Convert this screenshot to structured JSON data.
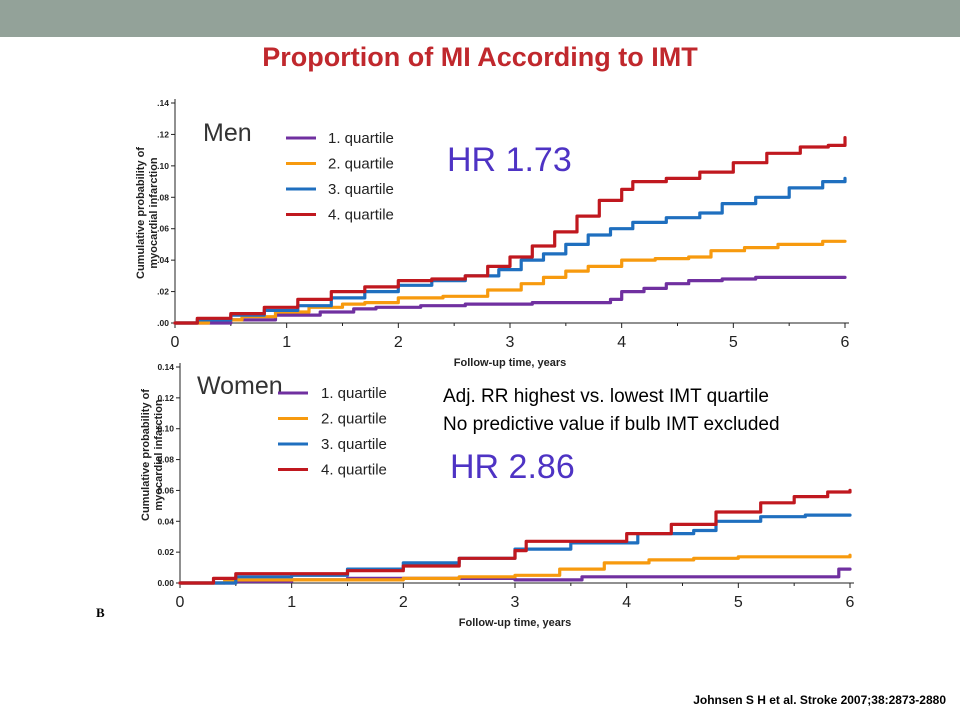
{
  "slide": {
    "title": "Proportion of MI According to IMT",
    "citation": "Johnsen S H et al. Stroke 2007;38:2873-2880",
    "panel_marker": "B"
  },
  "annotations": {
    "men_hr": "HR 1.73",
    "adj_line1": "Adj. RR highest vs. lowest IMT quartile",
    "adj_line2": "No predictive value if bulb IMT excluded",
    "women_hr": "HR 2.86"
  },
  "chart_data": [
    {
      "type": "line",
      "panel_label": "Men",
      "xlabel": "Follow-up time, years",
      "ylabel": "Cumulative probability of myocardial infarction",
      "xlim": [
        0,
        6
      ],
      "ylim": [
        0,
        0.14
      ],
      "x_ticks": [
        "0",
        "1",
        "2",
        "3",
        "4",
        "5",
        "6"
      ],
      "y_ticks": [
        ".00",
        ".02",
        ".04",
        ".06",
        ".08",
        ".10",
        ".12",
        ".14"
      ],
      "legend_position": "top-left",
      "series": [
        {
          "name": "1. quartile",
          "color": "#7030a0",
          "points": [
            [
              0,
              0
            ],
            [
              0.3,
              0
            ],
            [
              0.5,
              0.002
            ],
            [
              0.9,
              0.005
            ],
            [
              1.3,
              0.007
            ],
            [
              1.6,
              0.009
            ],
            [
              1.8,
              0.01
            ],
            [
              2.2,
              0.011
            ],
            [
              2.6,
              0.012
            ],
            [
              2.9,
              0.012
            ],
            [
              3.2,
              0.013
            ],
            [
              3.5,
              0.013
            ],
            [
              3.9,
              0.015
            ],
            [
              4.0,
              0.02
            ],
            [
              4.2,
              0.022
            ],
            [
              4.4,
              0.025
            ],
            [
              4.6,
              0.027
            ],
            [
              4.9,
              0.028
            ],
            [
              5.2,
              0.029
            ],
            [
              5.5,
              0.029
            ],
            [
              6.0,
              0.029
            ]
          ]
        },
        {
          "name": "2. quartile",
          "color": "#f79a0e",
          "points": [
            [
              0,
              0
            ],
            [
              0.3,
              0.002
            ],
            [
              0.6,
              0.004
            ],
            [
              0.9,
              0.007
            ],
            [
              1.2,
              0.01
            ],
            [
              1.5,
              0.012
            ],
            [
              1.7,
              0.013
            ],
            [
              2.0,
              0.016
            ],
            [
              2.4,
              0.017
            ],
            [
              2.8,
              0.021
            ],
            [
              3.1,
              0.025
            ],
            [
              3.3,
              0.029
            ],
            [
              3.5,
              0.033
            ],
            [
              3.7,
              0.036
            ],
            [
              4.0,
              0.04
            ],
            [
              4.3,
              0.041
            ],
            [
              4.6,
              0.042
            ],
            [
              4.8,
              0.046
            ],
            [
              5.1,
              0.048
            ],
            [
              5.4,
              0.05
            ],
            [
              5.8,
              0.052
            ],
            [
              6.0,
              0.052
            ]
          ]
        },
        {
          "name": "3. quartile",
          "color": "#1f6fbf",
          "points": [
            [
              0,
              0
            ],
            [
              0.2,
              0.002
            ],
            [
              0.5,
              0.005
            ],
            [
              0.8,
              0.008
            ],
            [
              1.1,
              0.011
            ],
            [
              1.4,
              0.016
            ],
            [
              1.7,
              0.02
            ],
            [
              2.0,
              0.024
            ],
            [
              2.3,
              0.027
            ],
            [
              2.6,
              0.03
            ],
            [
              2.9,
              0.034
            ],
            [
              3.1,
              0.04
            ],
            [
              3.3,
              0.044
            ],
            [
              3.5,
              0.05
            ],
            [
              3.7,
              0.056
            ],
            [
              3.9,
              0.06
            ],
            [
              4.1,
              0.064
            ],
            [
              4.4,
              0.067
            ],
            [
              4.7,
              0.07
            ],
            [
              4.9,
              0.076
            ],
            [
              5.2,
              0.08
            ],
            [
              5.5,
              0.086
            ],
            [
              5.8,
              0.09
            ],
            [
              6.0,
              0.092
            ]
          ]
        },
        {
          "name": "4. quartile",
          "color": "#c0181f",
          "points": [
            [
              0,
              0
            ],
            [
              0.2,
              0.003
            ],
            [
              0.5,
              0.006
            ],
            [
              0.8,
              0.01
            ],
            [
              1.1,
              0.015
            ],
            [
              1.4,
              0.02
            ],
            [
              1.7,
              0.023
            ],
            [
              2.0,
              0.027
            ],
            [
              2.3,
              0.028
            ],
            [
              2.6,
              0.03
            ],
            [
              2.8,
              0.036
            ],
            [
              3.0,
              0.042
            ],
            [
              3.2,
              0.049
            ],
            [
              3.4,
              0.058
            ],
            [
              3.6,
              0.068
            ],
            [
              3.8,
              0.078
            ],
            [
              4.0,
              0.085
            ],
            [
              4.1,
              0.09
            ],
            [
              4.4,
              0.092
            ],
            [
              4.7,
              0.096
            ],
            [
              5.0,
              0.102
            ],
            [
              5.3,
              0.108
            ],
            [
              5.6,
              0.112
            ],
            [
              5.85,
              0.113
            ],
            [
              6.0,
              0.118
            ]
          ]
        }
      ]
    },
    {
      "type": "line",
      "panel_label": "Women",
      "xlabel": "Follow-up time, years",
      "ylabel": "Cumulative probability of myocardial infarction",
      "xlim": [
        0,
        6
      ],
      "ylim": [
        0,
        0.14
      ],
      "x_ticks": [
        "0",
        "1",
        "2",
        "3",
        "4",
        "5",
        "6"
      ],
      "y_ticks": [
        "0.00",
        "0.02",
        "0.04",
        "0.06",
        "0.08",
        "0.10",
        "0.12",
        "0.14"
      ],
      "legend_position": "top-left",
      "series": [
        {
          "name": "1. quartile",
          "color": "#7030a0",
          "points": [
            [
              0,
              0
            ],
            [
              0.5,
              0.001
            ],
            [
              1.0,
              0.002
            ],
            [
              1.5,
              0.003
            ],
            [
              2.0,
              0.003
            ],
            [
              2.5,
              0.003
            ],
            [
              3.0,
              0.002
            ],
            [
              3.5,
              0.002
            ],
            [
              3.6,
              0.004
            ],
            [
              4.0,
              0.004
            ],
            [
              5.0,
              0.004
            ],
            [
              5.8,
              0.004
            ],
            [
              5.9,
              0.009
            ],
            [
              6.0,
              0.009
            ]
          ]
        },
        {
          "name": "2. quartile",
          "color": "#f79a0e",
          "points": [
            [
              0,
              0
            ],
            [
              0.4,
              0.002
            ],
            [
              0.8,
              0.002
            ],
            [
              1.5,
              0.002
            ],
            [
              2.0,
              0.003
            ],
            [
              2.5,
              0.004
            ],
            [
              3.0,
              0.005
            ],
            [
              3.4,
              0.009
            ],
            [
              3.8,
              0.013
            ],
            [
              4.2,
              0.015
            ],
            [
              4.6,
              0.016
            ],
            [
              5.0,
              0.017
            ],
            [
              5.5,
              0.017
            ],
            [
              6.0,
              0.018
            ]
          ]
        },
        {
          "name": "3. quartile",
          "color": "#1f6fbf",
          "points": [
            [
              0,
              0
            ],
            [
              0.5,
              0.004
            ],
            [
              1.0,
              0.005
            ],
            [
              1.5,
              0.009
            ],
            [
              2.0,
              0.013
            ],
            [
              2.5,
              0.016
            ],
            [
              3.0,
              0.022
            ],
            [
              3.5,
              0.026
            ],
            [
              3.9,
              0.026
            ],
            [
              4.1,
              0.032
            ],
            [
              4.6,
              0.034
            ],
            [
              4.8,
              0.04
            ],
            [
              5.2,
              0.043
            ],
            [
              5.6,
              0.044
            ],
            [
              6.0,
              0.044
            ]
          ]
        },
        {
          "name": "4. quartile",
          "color": "#c0181f",
          "points": [
            [
              0,
              0
            ],
            [
              0.3,
              0.003
            ],
            [
              0.5,
              0.006
            ],
            [
              1.0,
              0.006
            ],
            [
              1.5,
              0.008
            ],
            [
              2.0,
              0.011
            ],
            [
              2.5,
              0.016
            ],
            [
              3.0,
              0.021
            ],
            [
              3.1,
              0.027
            ],
            [
              3.5,
              0.027
            ],
            [
              4.0,
              0.032
            ],
            [
              4.4,
              0.038
            ],
            [
              4.8,
              0.046
            ],
            [
              5.2,
              0.052
            ],
            [
              5.5,
              0.056
            ],
            [
              5.8,
              0.059
            ],
            [
              6.0,
              0.06
            ]
          ]
        }
      ]
    }
  ]
}
